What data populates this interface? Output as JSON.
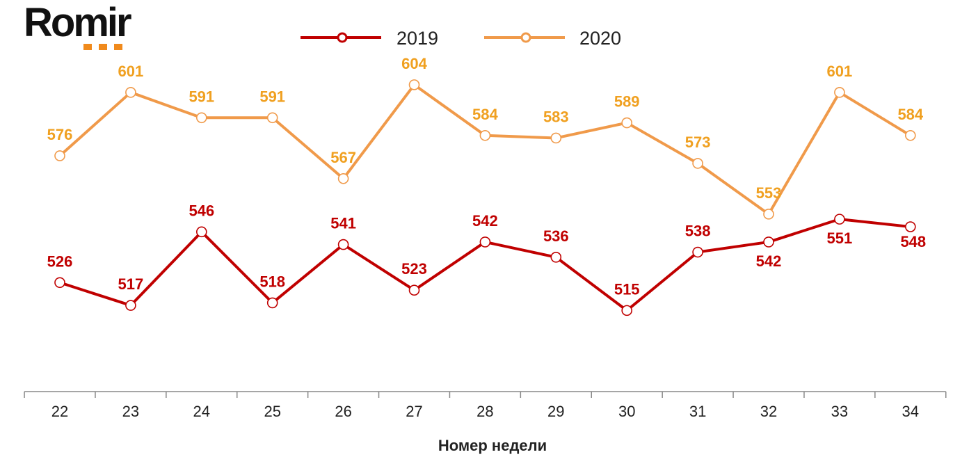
{
  "logo": {
    "text": "Romir",
    "dot_color": "#f08a1c"
  },
  "chart_data": {
    "type": "line",
    "title": "",
    "xlabel": "Номер недели",
    "ylabel": "",
    "categories": [
      "22",
      "23",
      "24",
      "25",
      "26",
      "27",
      "28",
      "29",
      "30",
      "31",
      "32",
      "33",
      "34"
    ],
    "series": [
      {
        "name": "2019",
        "color": "#c00000",
        "values": [
          526,
          517,
          546,
          518,
          541,
          523,
          542,
          536,
          515,
          538,
          542,
          551,
          548
        ],
        "label_position": [
          "above",
          "above",
          "above",
          "above",
          "above",
          "above",
          "above",
          "above",
          "above",
          "above",
          "below",
          "below",
          "below"
        ]
      },
      {
        "name": "2020",
        "color": "#f09a4a",
        "label_color": "#f0a020",
        "values": [
          576,
          601,
          591,
          591,
          567,
          604,
          584,
          583,
          589,
          573,
          553,
          601,
          584
        ],
        "label_position": [
          "above",
          "above",
          "above",
          "above",
          "above",
          "above",
          "above",
          "above",
          "above",
          "above",
          "above",
          "above",
          "above"
        ]
      }
    ],
    "ylim": [
      497,
      610
    ],
    "grid": false,
    "legend_position": "top-center"
  }
}
